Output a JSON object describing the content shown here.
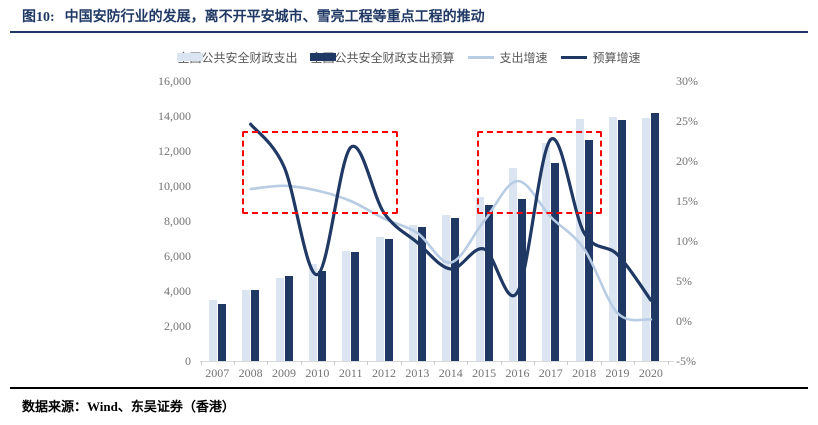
{
  "header": {
    "figure_label": "图10:",
    "title": "中国安防行业的发展，离不开平安城市、雪亮工程等重点工程的推动"
  },
  "footer": {
    "source_label": "数据来源：Wind、东吴证券（香港）"
  },
  "colors": {
    "navy": "#1f3864",
    "light_blue_bar": "#dbe5f1",
    "light_blue_line": "#b8cce4",
    "annotation_red": "#ff0000",
    "axis_text": "#737373",
    "axis_line": "#d9d9d9",
    "title_rule": "#1f3864",
    "bottom_rule": "#000000"
  },
  "legend": {
    "items": [
      {
        "label": "全国公共安全财政支出",
        "swatch": "bar",
        "color": "#dbe5f1"
      },
      {
        "label": "全国公共安全财政支出预算",
        "swatch": "bar",
        "color": "#1f3864"
      },
      {
        "label": "支出增速",
        "swatch": "line",
        "color": "#b8cce4"
      },
      {
        "label": "预算增速",
        "swatch": "line",
        "color": "#1f3864"
      }
    ]
  },
  "chart_data": {
    "type": "bar",
    "subtype": "combo-bar-line",
    "categories": [
      "2007",
      "2008",
      "2009",
      "2010",
      "2011",
      "2012",
      "2013",
      "2014",
      "2015",
      "2016",
      "2017",
      "2018",
      "2019",
      "2020"
    ],
    "series": [
      {
        "name": "全国公共安全财政支出",
        "type": "bar",
        "axis": "left",
        "color": "#dbe5f1",
        "values": [
          3490,
          4060,
          4744,
          5518,
          6304,
          7112,
          7787,
          8357,
          9380,
          11032,
          12461,
          13811,
          13940,
          13870
        ]
      },
      {
        "name": "全国公共安全财政支出预算",
        "type": "bar",
        "axis": "left",
        "color": "#1f3864",
        "values": [
          3260,
          4080,
          4857,
          5143,
          6229,
          6971,
          7657,
          8171,
          8934,
          9240,
          11331,
          12629,
          13771,
          14189
        ]
      },
      {
        "name": "支出增速",
        "type": "line",
        "axis": "right",
        "color": "#b8cce4",
        "stroke_width": 2.6,
        "values": [
          null,
          16.5,
          16.9,
          16.3,
          15.0,
          12.8,
          11.0,
          7.3,
          12.5,
          17.5,
          13.0,
          9.0,
          1.0,
          0.2
        ]
      },
      {
        "name": "预算增速",
        "type": "line",
        "axis": "right",
        "color": "#1f3864",
        "stroke_width": 3.2,
        "values": [
          null,
          24.6,
          19.3,
          5.8,
          21.7,
          13.5,
          9.8,
          6.5,
          9.0,
          3.6,
          22.7,
          11.0,
          8.3,
          2.6
        ]
      }
    ],
    "left_axis": {
      "min": 0,
      "max": 16000,
      "tick_step": 2000,
      "tick_labels": [
        "0",
        "2,000",
        "4,000",
        "6,000",
        "8,000",
        "10,000",
        "12,000",
        "14,000",
        "16,000"
      ]
    },
    "right_axis": {
      "min": -5,
      "max": 30,
      "tick_step": 5,
      "tick_labels": [
        "-5%",
        "0%",
        "5%",
        "10%",
        "15%",
        "20%",
        "25%",
        "30%"
      ]
    },
    "grid": false,
    "legend_position": "top",
    "annotations": [
      {
        "name": "highlight-box-2008-2012",
        "type": "dashed-box",
        "x_from_index": 0.74,
        "x_to_index": 5.3,
        "y_top_pct": 23.75,
        "y_bottom_pct": 13.9
      },
      {
        "name": "highlight-box-2015-2018",
        "type": "dashed-box",
        "x_from_index": 7.79,
        "x_to_index": 11.41,
        "y_top_pct": 23.75,
        "y_bottom_pct": 13.9
      }
    ]
  }
}
